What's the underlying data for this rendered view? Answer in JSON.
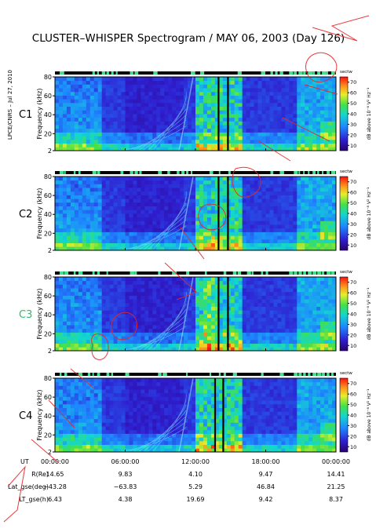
{
  "title": "CLUSTER–WHISPER Spectrogram / MAY 06, 2003 (Day 126)",
  "side_credit": "LPCE/CNRS – Jul 27, 2010",
  "colors": {
    "c1": "#000000",
    "c2": "#000000",
    "c3": "#2dbb6a",
    "c4": "#000000",
    "annotation": "#e8262a"
  },
  "chart_data": {
    "type": "heatmap",
    "x": {
      "label": "UT",
      "ticks": [
        "00:00:00",
        "06:00:00",
        "12:00:00",
        "18:00:00",
        "00:00:00"
      ],
      "range_hours": [
        0,
        24
      ]
    },
    "y": {
      "label": "Frequency (kHz)",
      "ticks": [
        2,
        20,
        40,
        60,
        80
      ],
      "range": [
        2,
        80
      ]
    },
    "colorbar": {
      "label": "dB above 10⁻⁸ V² Hz⁻¹",
      "ticks": [
        10,
        20,
        30,
        40,
        50,
        60,
        70
      ],
      "range": [
        5,
        75
      ],
      "mode_label": "sectw"
    },
    "panels": [
      {
        "spacecraft": "C1",
        "color_key": "c1"
      },
      {
        "spacecraft": "C2",
        "color_key": "c2"
      },
      {
        "spacecraft": "C3",
        "color_key": "c3"
      },
      {
        "spacecraft": "C4",
        "color_key": "c4"
      }
    ],
    "ephemeris": {
      "rows": [
        {
          "label": "R(Re)",
          "values": [
            "14.65",
            "9.83",
            "4.10",
            "9.47",
            "14.41"
          ]
        },
        {
          "label": "Lat_gse(deg)",
          "values": [
            "−43.28",
            "−63.83",
            "5.29",
            "46.84",
            "21.25"
          ]
        },
        {
          "label": "LT_gse(h)",
          "values": [
            "6.43",
            "4.38",
            "19.69",
            "9.42",
            "8.37"
          ]
        }
      ]
    }
  }
}
